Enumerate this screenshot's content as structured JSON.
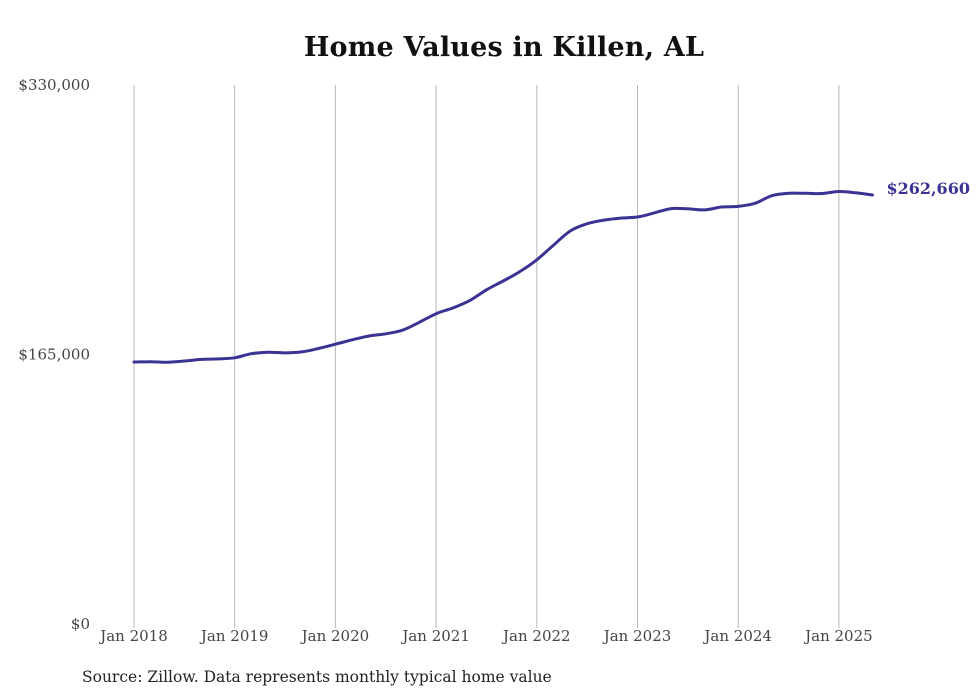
{
  "chart_data": {
    "type": "line",
    "title": "Home Values in Killen, AL",
    "xlabel": "",
    "ylabel": "",
    "ylim": [
      0,
      330000
    ],
    "y_ticks": [
      0,
      165000,
      330000
    ],
    "y_tick_labels": [
      "$0",
      "$165,000",
      "$330,000"
    ],
    "x_range": [
      "2018-01",
      "2025-05"
    ],
    "x_ticks": [
      "2018-01",
      "2019-01",
      "2020-01",
      "2021-01",
      "2022-01",
      "2023-01",
      "2024-01",
      "2025-01"
    ],
    "x_tick_labels": [
      "Jan 2018",
      "Jan 2019",
      "Jan 2020",
      "Jan 2021",
      "Jan 2022",
      "Jan 2023",
      "Jan 2024",
      "Jan 2025"
    ],
    "grid": "vertical",
    "legend": "none",
    "line_color": "#3b3393",
    "end_label": "$262,660",
    "series": [
      {
        "x": [
          "2018-01",
          "2018-03",
          "2018-05",
          "2018-07",
          "2018-09",
          "2018-11",
          "2019-01",
          "2019-03",
          "2019-05",
          "2019-07",
          "2019-09",
          "2019-11",
          "2020-01",
          "2020-03",
          "2020-05",
          "2020-07",
          "2020-09",
          "2020-11",
          "2021-01",
          "2021-03",
          "2021-05",
          "2021-07",
          "2021-09",
          "2021-11",
          "2022-01",
          "2022-03",
          "2022-05",
          "2022-07",
          "2022-09",
          "2022-11",
          "2023-01",
          "2023-03",
          "2023-05",
          "2023-07",
          "2023-09",
          "2023-11",
          "2024-01",
          "2024-03",
          "2024-05",
          "2024-07",
          "2024-09",
          "2024-11",
          "2025-01",
          "2025-03",
          "2025-05"
        ],
        "values": [
          160400,
          160600,
          160300,
          161000,
          162000,
          162300,
          163000,
          165500,
          166400,
          166000,
          166600,
          168700,
          171300,
          174000,
          176300,
          177700,
          179900,
          184700,
          190000,
          193500,
          198000,
          204600,
          210000,
          215800,
          223000,
          232000,
          240700,
          245100,
          247300,
          248500,
          249200,
          251700,
          254300,
          254200,
          253500,
          255300,
          255700,
          257600,
          262200,
          263700,
          263700,
          263600,
          264800,
          264000,
          262660
        ]
      }
    ]
  },
  "source_note": "Source: Zillow. Data represents monthly typical home value"
}
